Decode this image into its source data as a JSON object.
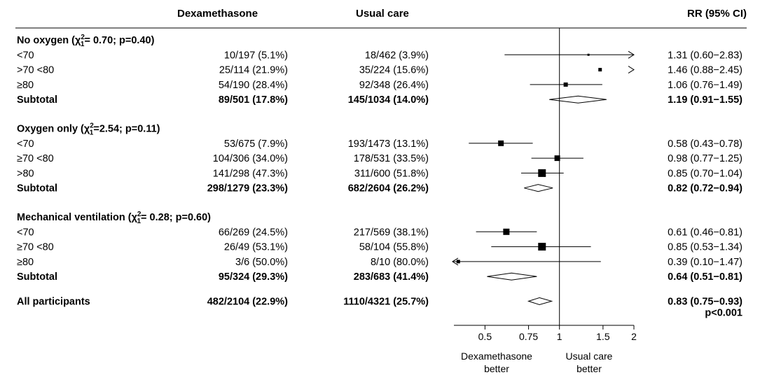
{
  "chart_data": {
    "type": "forest",
    "headers": {
      "dex": "Dexamethasone",
      "usual": "Usual care",
      "rr": "RR (95% CI)"
    },
    "groups": [
      {
        "title": "No oxygen (χ",
        "chi_sup": "2",
        "chi_sub": "1",
        "title_rest": "= 0.70; p=0.40)",
        "rows": [
          {
            "label": "<70",
            "dex": "10/197 (5.1%)",
            "usual": "18/462 (3.9%)",
            "rr": 1.31,
            "lo": 0.6,
            "hi": 2.83,
            "rr_text": "1.31 (0.60−2.83)",
            "arrow_right": true
          },
          {
            "label": ">70 <80",
            "dex": "25/114 (21.9%)",
            "usual": "35/224 (15.6%)",
            "rr": 1.46,
            "lo": 0.88,
            "hi": 2.45,
            "rr_text": "1.46 (0.88−2.45)",
            "arrow_right": true,
            "hide_line": true
          },
          {
            "label": "≥80",
            "dex": "54/190 (28.4%)",
            "usual": "92/348 (26.4%)",
            "rr": 1.06,
            "lo": 0.76,
            "hi": 1.49,
            "rr_text": "1.06 (0.76−1.49)"
          }
        ],
        "subtotal": {
          "label": "Subtotal",
          "dex": "89/501 (17.8%)",
          "usual": "145/1034 (14.0%)",
          "rr": 1.19,
          "lo": 0.91,
          "hi": 1.55,
          "rr_text": "1.19 (0.91−1.55)"
        }
      },
      {
        "title": "Oxygen only (χ",
        "chi_sup": "2",
        "chi_sub": "1",
        "title_rest": "=2.54; p=0.11)",
        "rows": [
          {
            "label": "<70",
            "dex": "53/675 (7.9%)",
            "usual": "193/1473 (13.1%)",
            "rr": 0.58,
            "lo": 0.43,
            "hi": 0.78,
            "rr_text": "0.58 (0.43−0.78)"
          },
          {
            "label": "≥70 <80",
            "dex": "104/306 (34.0%)",
            "usual": "178/531 (33.5%)",
            "rr": 0.98,
            "lo": 0.77,
            "hi": 1.25,
            "rr_text": "0.98 (0.77−1.25)"
          },
          {
            "label": ">80",
            "dex": "141/298 (47.3%)",
            "usual": "311/600 (51.8%)",
            "rr": 0.85,
            "lo": 0.7,
            "hi": 1.04,
            "rr_text": "0.85 (0.70−1.04)"
          }
        ],
        "subtotal": {
          "label": "Subtotal",
          "dex": "298/1279 (23.3%)",
          "usual": "682/2604 (26.2%)",
          "rr": 0.82,
          "lo": 0.72,
          "hi": 0.94,
          "rr_text": "0.82 (0.72−0.94)"
        }
      },
      {
        "title": "Mechanical ventilation (χ",
        "chi_sup": "2",
        "chi_sub": "1",
        "title_rest": "= 0.28; p=0.60)",
        "rows": [
          {
            "label": "<70",
            "dex": "66/269 (24.5%)",
            "usual": "217/569 (38.1%)",
            "rr": 0.61,
            "lo": 0.46,
            "hi": 0.81,
            "rr_text": "0.61 (0.46−0.81)"
          },
          {
            "label": "≥70 <80",
            "dex": "26/49 (53.1%)",
            "usual": "58/104 (55.8%)",
            "rr": 0.85,
            "lo": 0.53,
            "hi": 1.34,
            "rr_text": "0.85 (0.53−1.34)"
          },
          {
            "label": "≥80",
            "dex": "3/6 (50.0%)",
            "usual": "8/10 (80.0%)",
            "rr": 0.39,
            "lo": 0.1,
            "hi": 1.47,
            "rr_text": "0.39 (0.10−1.47)",
            "arrow_left": true
          }
        ],
        "subtotal": {
          "label": "Subtotal",
          "dex": "95/324 (29.3%)",
          "usual": "283/683 (41.4%)",
          "rr": 0.64,
          "lo": 0.51,
          "hi": 0.81,
          "rr_text": "0.64 (0.51−0.81)"
        }
      }
    ],
    "overall": {
      "label": "All participants",
      "dex": "482/2104 (22.9%)",
      "usual": "1110/4321 (25.7%)",
      "rr": 0.83,
      "lo": 0.75,
      "hi": 0.93,
      "rr_text": "0.83 (0.75−0.93)",
      "p_text": "p<0.001"
    },
    "x_axis": {
      "scale": "log",
      "min": 0.36,
      "max": 2.0,
      "ticks": [
        0.5,
        0.75,
        1,
        1.5,
        2
      ],
      "tick_labels": [
        "0.5",
        "0.75",
        "1",
        "1.5",
        "2"
      ],
      "reference": 1
    },
    "direction_labels": {
      "left": [
        "Dexamethasone",
        "better"
      ],
      "right": [
        "Usual care",
        "better"
      ]
    }
  }
}
